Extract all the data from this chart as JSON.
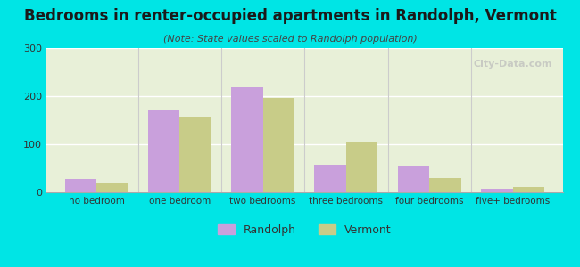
{
  "title": "Bedrooms in renter-occupied apartments in Randolph, Vermont",
  "subtitle": "(Note: State values scaled to Randolph population)",
  "categories": [
    "no bedroom",
    "one bedroom",
    "two bedrooms",
    "three bedrooms",
    "four bedrooms",
    "five+ bedrooms"
  ],
  "randolph_values": [
    28,
    170,
    218,
    57,
    55,
    8
  ],
  "vermont_values": [
    18,
    158,
    197,
    106,
    30,
    12
  ],
  "randolph_color": "#c9a0dc",
  "vermont_color": "#c8cc88",
  "background_outer": "#00e5e5",
  "ylim": [
    0,
    300
  ],
  "yticks": [
    0,
    100,
    200,
    300
  ],
  "bar_width": 0.38,
  "legend_labels": [
    "Randolph",
    "Vermont"
  ],
  "watermark": "City-Data.com"
}
